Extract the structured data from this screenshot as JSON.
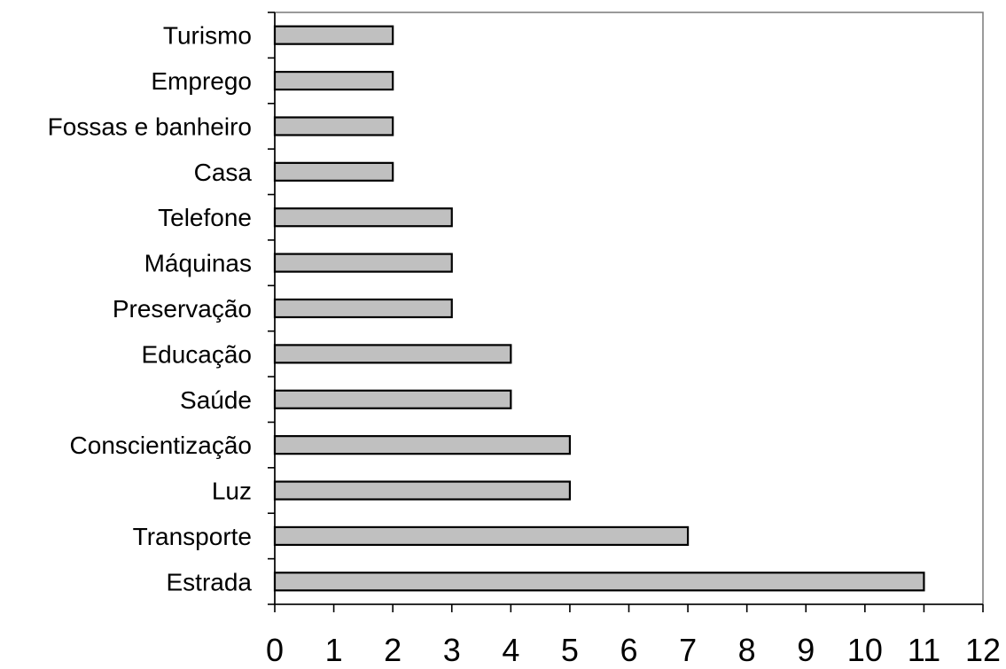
{
  "chart_data": {
    "type": "bar",
    "orientation": "horizontal",
    "categories": [
      "Turismo",
      "Emprego",
      "Fossas e banheiro",
      "Casa",
      "Telefone",
      "Máquinas",
      "Preservação",
      "Educação",
      "Saúde",
      "Conscientização",
      "Luz",
      "Transporte",
      "Estrada"
    ],
    "values": [
      2,
      2,
      2,
      2,
      3,
      3,
      3,
      4,
      4,
      5,
      5,
      7,
      11
    ],
    "xlim": [
      0,
      12
    ],
    "x_ticks": [
      "0",
      "1",
      "2",
      "3",
      "4",
      "5",
      "6",
      "7",
      "8",
      "9",
      "10",
      "11",
      "12"
    ],
    "grid": false,
    "legend": "none",
    "colors": {
      "bar_fill": "#c0c0c0",
      "bar_stroke": "#000000",
      "plot_border": "#808080",
      "text": "#000000"
    }
  }
}
